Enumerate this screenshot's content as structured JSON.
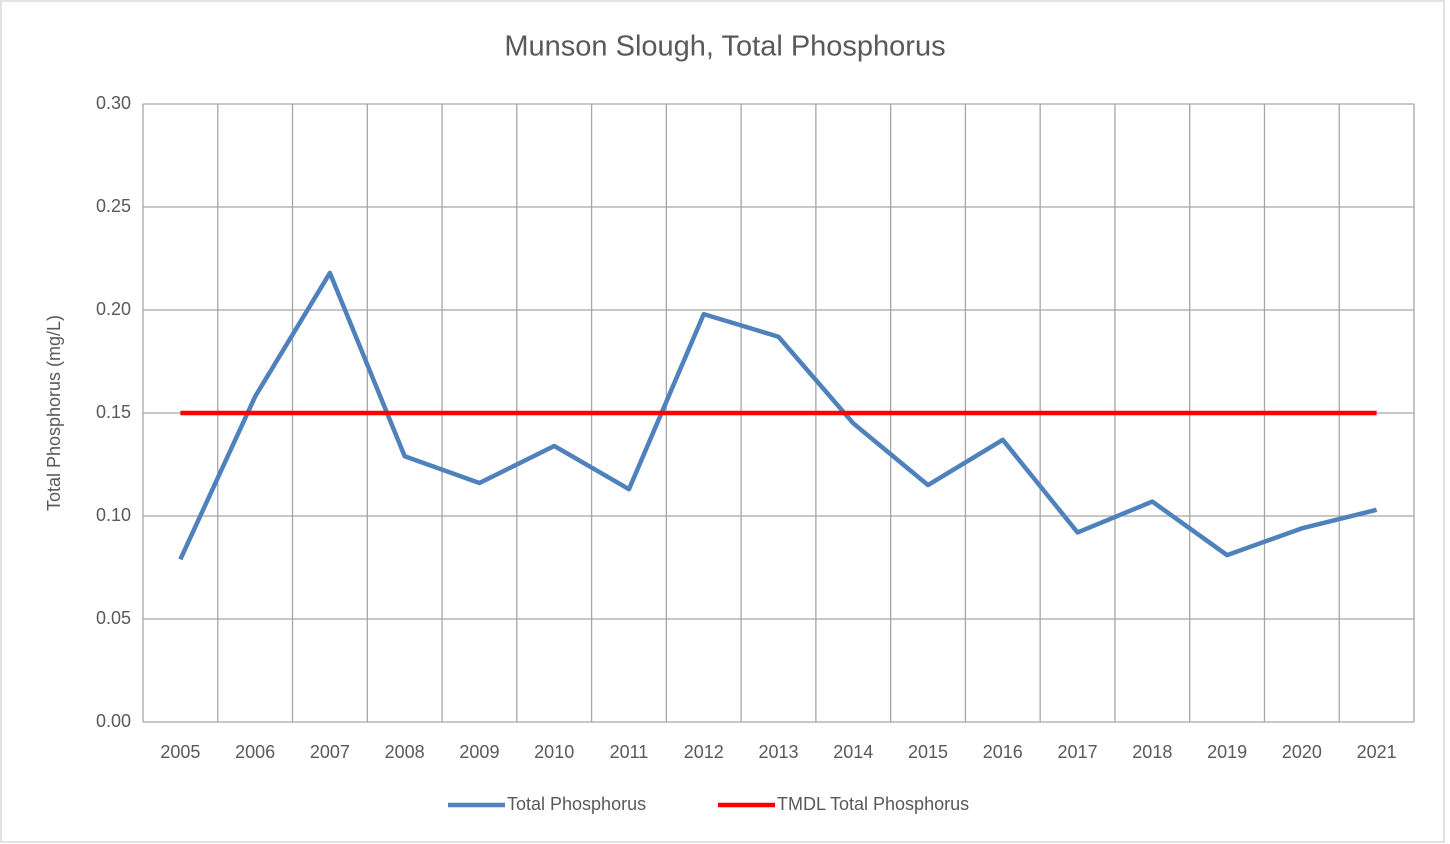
{
  "chart_data": {
    "type": "line",
    "title": "Munson Slough, Total Phosphorus",
    "y_label": "Total Phosphorus (mg/L)",
    "categories": [
      "2005",
      "2006",
      "2007",
      "2008",
      "2009",
      "2010",
      "2011",
      "2012",
      "2013",
      "2014",
      "2015",
      "2016",
      "2017",
      "2018",
      "2019",
      "2020",
      "2021"
    ],
    "series": [
      {
        "name": "Total Phosphorus",
        "color": "#4f81bd",
        "values": [
          0.079,
          0.158,
          0.218,
          0.129,
          0.116,
          0.134,
          0.113,
          0.198,
          0.187,
          0.145,
          0.115,
          0.137,
          0.092,
          0.107,
          0.081,
          0.094,
          0.103
        ]
      },
      {
        "name": "TMDL Total Phosphorus",
        "color": "#ff0000",
        "values": [
          0.15,
          0.15,
          0.15,
          0.15,
          0.15,
          0.15,
          0.15,
          0.15,
          0.15,
          0.15,
          0.15,
          0.15,
          0.15,
          0.15,
          0.15,
          0.15,
          0.15
        ]
      }
    ],
    "ylim": [
      0,
      0.3
    ],
    "yticks": [
      {
        "value": 0,
        "label": "0.00"
      },
      {
        "value": 0.05,
        "label": "0.05"
      },
      {
        "value": 0.1,
        "label": "0.10"
      },
      {
        "value": 0.15,
        "label": "0.15"
      },
      {
        "value": 0.2,
        "label": "0.20"
      },
      {
        "value": 0.25,
        "label": "0.25"
      },
      {
        "value": 0.3,
        "label": "0.30"
      }
    ],
    "grid": true,
    "legend": "bottom"
  }
}
